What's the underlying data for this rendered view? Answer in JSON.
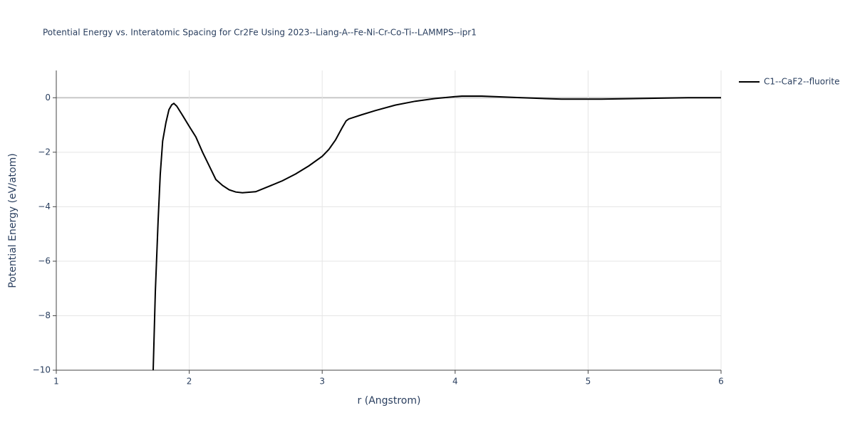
{
  "chart_data": {
    "type": "line",
    "title": "Potential Energy vs. Interatomic Spacing for Cr2Fe Using 2023--Liang-A--Fe-Ni-Cr-Co-Ti--LAMMPS--ipr1",
    "x_label": "r (Angstrom)",
    "y_label": "Potential Energy (eV/atom)",
    "x": [
      1.729,
      1.745,
      1.766,
      1.782,
      1.8,
      1.825,
      1.847,
      1.868,
      1.884,
      1.906,
      1.95,
      2.0,
      2.05,
      2.1,
      2.16,
      2.2,
      2.25,
      2.3,
      2.35,
      2.4,
      2.5,
      2.6,
      2.7,
      2.8,
      2.9,
      3.0,
      3.05,
      3.1,
      3.15,
      3.18,
      3.2,
      3.3,
      3.4,
      3.55,
      3.7,
      3.85,
      4.0,
      4.05,
      4.2,
      4.5,
      4.8,
      5.1,
      5.5,
      5.75,
      6.0
    ],
    "series": [
      {
        "name": "C1--CaF2--fluorite",
        "color": "#000000",
        "values": [
          -10,
          -7.13,
          -4.52,
          -2.82,
          -1.59,
          -0.91,
          -0.44,
          -0.26,
          -0.21,
          -0.31,
          -0.65,
          -1.05,
          -1.44,
          -2.0,
          -2.6,
          -3.0,
          -3.22,
          -3.38,
          -3.46,
          -3.49,
          -3.45,
          -3.25,
          -3.05,
          -2.8,
          -2.5,
          -2.15,
          -1.9,
          -1.55,
          -1.1,
          -0.85,
          -0.78,
          -0.62,
          -0.47,
          -0.27,
          -0.13,
          -0.03,
          0.04,
          0.06,
          0.06,
          0.0,
          -0.05,
          -0.05,
          -0.02,
          0.0,
          0.0
        ]
      }
    ],
    "xlim": [
      1,
      6
    ],
    "ylim": [
      -10,
      1
    ],
    "xticks": [
      1,
      2,
      3,
      4,
      5,
      6
    ],
    "yticks": [
      {
        "value": -10,
        "label": "−10"
      },
      {
        "value": -8,
        "label": "−8"
      },
      {
        "value": -6,
        "label": "−6"
      },
      {
        "value": -4,
        "label": "−4"
      },
      {
        "value": -2,
        "label": "−2"
      },
      0
    ],
    "grid": true,
    "legend": "top-right"
  }
}
